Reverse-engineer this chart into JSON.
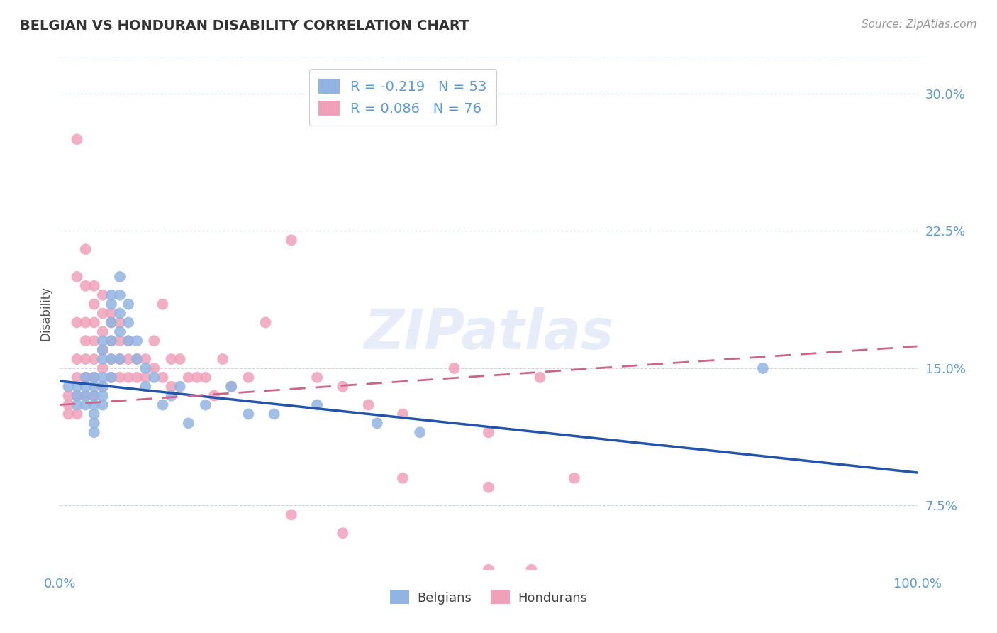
{
  "title": "BELGIAN VS HONDURAN DISABILITY CORRELATION CHART",
  "source": "Source: ZipAtlas.com",
  "ylabel": "Disability",
  "xlim": [
    0.0,
    1.0
  ],
  "ylim": [
    0.04,
    0.32
  ],
  "yticks": [
    0.075,
    0.15,
    0.225,
    0.3
  ],
  "ytick_labels": [
    "7.5%",
    "15.0%",
    "22.5%",
    "30.0%"
  ],
  "xticks": [
    0.0,
    1.0
  ],
  "xtick_labels": [
    "0.0%",
    "100.0%"
  ],
  "belgian_color": "#92b4e3",
  "honduran_color": "#f0a0b8",
  "belgian_line_color": "#2255aa",
  "honduran_line_color": "#cc6688",
  "axis_color": "#5b9bd5",
  "grid_color": "#c8d4e8",
  "background_color": "#ffffff",
  "watermark": "ZIPatlas",
  "belgian_x": [
    0.01,
    0.02,
    0.02,
    0.02,
    0.03,
    0.03,
    0.03,
    0.03,
    0.04,
    0.04,
    0.04,
    0.04,
    0.04,
    0.04,
    0.04,
    0.05,
    0.05,
    0.05,
    0.05,
    0.05,
    0.05,
    0.05,
    0.06,
    0.06,
    0.06,
    0.06,
    0.06,
    0.06,
    0.07,
    0.07,
    0.07,
    0.07,
    0.07,
    0.08,
    0.08,
    0.08,
    0.09,
    0.09,
    0.1,
    0.1,
    0.11,
    0.12,
    0.13,
    0.14,
    0.15,
    0.17,
    0.2,
    0.22,
    0.25,
    0.3,
    0.37,
    0.42,
    0.82
  ],
  "belgian_y": [
    0.14,
    0.14,
    0.135,
    0.13,
    0.145,
    0.14,
    0.135,
    0.13,
    0.145,
    0.14,
    0.135,
    0.13,
    0.125,
    0.12,
    0.115,
    0.165,
    0.16,
    0.155,
    0.145,
    0.14,
    0.135,
    0.13,
    0.19,
    0.185,
    0.175,
    0.165,
    0.155,
    0.145,
    0.2,
    0.19,
    0.18,
    0.17,
    0.155,
    0.185,
    0.175,
    0.165,
    0.165,
    0.155,
    0.15,
    0.14,
    0.145,
    0.13,
    0.135,
    0.14,
    0.12,
    0.13,
    0.14,
    0.125,
    0.125,
    0.13,
    0.12,
    0.115,
    0.15
  ],
  "honduran_x": [
    0.01,
    0.01,
    0.01,
    0.02,
    0.02,
    0.02,
    0.02,
    0.02,
    0.02,
    0.02,
    0.03,
    0.03,
    0.03,
    0.03,
    0.03,
    0.03,
    0.03,
    0.04,
    0.04,
    0.04,
    0.04,
    0.04,
    0.04,
    0.04,
    0.05,
    0.05,
    0.05,
    0.05,
    0.05,
    0.05,
    0.06,
    0.06,
    0.06,
    0.06,
    0.06,
    0.07,
    0.07,
    0.07,
    0.07,
    0.08,
    0.08,
    0.08,
    0.09,
    0.09,
    0.1,
    0.1,
    0.11,
    0.11,
    0.12,
    0.12,
    0.13,
    0.13,
    0.14,
    0.15,
    0.16,
    0.17,
    0.18,
    0.19,
    0.2,
    0.22,
    0.24,
    0.27,
    0.3,
    0.33,
    0.36,
    0.4,
    0.46,
    0.5,
    0.56,
    0.6,
    0.4,
    0.5,
    0.27,
    0.33,
    0.5,
    0.55
  ],
  "honduran_y": [
    0.135,
    0.13,
    0.125,
    0.275,
    0.2,
    0.175,
    0.155,
    0.145,
    0.135,
    0.125,
    0.215,
    0.195,
    0.175,
    0.165,
    0.155,
    0.145,
    0.135,
    0.195,
    0.185,
    0.175,
    0.165,
    0.155,
    0.145,
    0.135,
    0.19,
    0.18,
    0.17,
    0.16,
    0.15,
    0.14,
    0.18,
    0.175,
    0.165,
    0.155,
    0.145,
    0.175,
    0.165,
    0.155,
    0.145,
    0.165,
    0.155,
    0.145,
    0.155,
    0.145,
    0.155,
    0.145,
    0.165,
    0.15,
    0.185,
    0.145,
    0.155,
    0.14,
    0.155,
    0.145,
    0.145,
    0.145,
    0.135,
    0.155,
    0.14,
    0.145,
    0.175,
    0.22,
    0.145,
    0.14,
    0.13,
    0.125,
    0.15,
    0.115,
    0.145,
    0.09,
    0.09,
    0.085,
    0.07,
    0.06,
    0.04,
    0.04
  ],
  "bel_line_x0": 0.0,
  "bel_line_y0": 0.143,
  "bel_line_x1": 1.0,
  "bel_line_y1": 0.093,
  "hon_line_x0": 0.0,
  "hon_line_y0": 0.13,
  "hon_line_x1": 1.0,
  "hon_line_y1": 0.162
}
